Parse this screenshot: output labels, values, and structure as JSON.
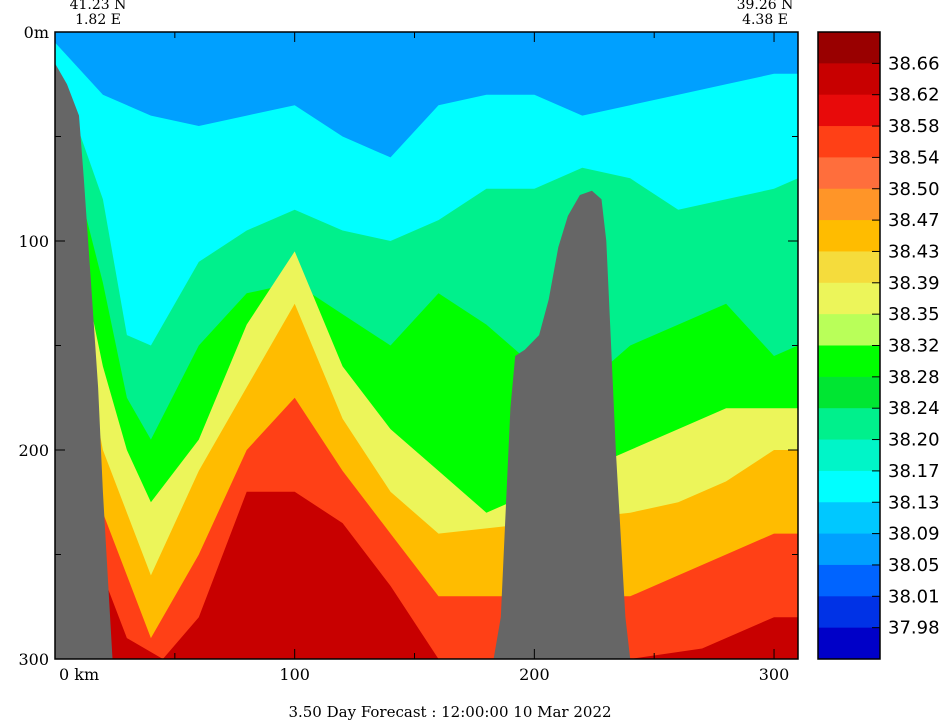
{
  "chart_data": {
    "type": "heatmap",
    "title": "3.50 Day Forecast : 12:00:00  10 Mar 2022",
    "corners": {
      "left": {
        "lat": "41.23 N",
        "lon": "1.82 E"
      },
      "right": {
        "lat": "39.26 N",
        "lon": "4.38 E"
      }
    },
    "xlabel": "km",
    "xlim": [
      0,
      310
    ],
    "x_ticks": [
      "0",
      "100",
      "200",
      "300"
    ],
    "ylabel": "m",
    "ylim": [
      0,
      300
    ],
    "y_ticks": [
      "0",
      "100",
      "200",
      "300"
    ],
    "y_tick_suffix": "m",
    "y_inverted": true,
    "x_tick_suffix": " km",
    "colorbar": {
      "labels": [
        "38.66",
        "38.62",
        "38.58",
        "38.54",
        "38.50",
        "38.47",
        "38.43",
        "38.39",
        "38.35",
        "38.32",
        "38.28",
        "38.24",
        "38.20",
        "38.17",
        "38.13",
        "38.09",
        "38.05",
        "38.01",
        "37.98"
      ],
      "colors": [
        "#990000",
        "#c80000",
        "#e80a0a",
        "#ff4016",
        "#ff6e3c",
        "#ff9528",
        "#ffbc00",
        "#f5dc3c",
        "#ecf55a",
        "#b9ff59",
        "#00ff00",
        "#00e632",
        "#00f08c",
        "#00f5c8",
        "#00ffff",
        "#00c8ff",
        "#00a0ff",
        "#0064ff",
        "#0032e6",
        "#0000c8"
      ]
    },
    "land_color": "#666666",
    "bathymetry_km_m": [
      [
        0,
        15
      ],
      [
        5,
        25
      ],
      [
        10,
        40
      ],
      [
        12,
        70
      ],
      [
        15,
        120
      ],
      [
        18,
        170
      ],
      [
        20,
        220
      ],
      [
        22,
        260
      ],
      [
        24,
        300
      ]
    ],
    "seamount_km_m": [
      [
        183,
        300
      ],
      [
        186,
        280
      ],
      [
        188,
        230
      ],
      [
        190,
        180
      ],
      [
        192,
        155
      ],
      [
        196,
        152
      ],
      [
        202,
        145
      ],
      [
        206,
        128
      ],
      [
        210,
        103
      ],
      [
        214,
        88
      ],
      [
        219,
        78
      ],
      [
        224,
        76
      ],
      [
        228,
        80
      ],
      [
        230,
        100
      ],
      [
        232,
        150
      ],
      [
        234,
        200
      ],
      [
        236,
        240
      ],
      [
        238,
        280
      ],
      [
        240,
        300
      ]
    ],
    "isohalines_m": [
      {
        "value": "38.13",
        "depths": [
          [
            0,
            5
          ],
          [
            20,
            30
          ],
          [
            40,
            40
          ],
          [
            60,
            45
          ],
          [
            80,
            40
          ],
          [
            100,
            35
          ],
          [
            120,
            50
          ],
          [
            140,
            60
          ],
          [
            160,
            35
          ],
          [
            180,
            30
          ],
          [
            200,
            30
          ],
          [
            220,
            40
          ],
          [
            240,
            35
          ],
          [
            260,
            30
          ],
          [
            280,
            25
          ],
          [
            300,
            20
          ],
          [
            310,
            20
          ]
        ]
      },
      {
        "value": "38.20",
        "depths": [
          [
            0,
            15
          ],
          [
            20,
            80
          ],
          [
            30,
            145
          ],
          [
            40,
            150
          ],
          [
            60,
            110
          ],
          [
            80,
            95
          ],
          [
            100,
            85
          ],
          [
            120,
            95
          ],
          [
            140,
            100
          ],
          [
            160,
            90
          ],
          [
            180,
            75
          ],
          [
            200,
            75
          ],
          [
            220,
            65
          ],
          [
            240,
            70
          ],
          [
            260,
            85
          ],
          [
            280,
            80
          ],
          [
            300,
            75
          ],
          [
            310,
            70
          ]
        ]
      },
      {
        "value": "38.28",
        "depths": [
          [
            0,
            30
          ],
          [
            20,
            120
          ],
          [
            30,
            175
          ],
          [
            40,
            195
          ],
          [
            60,
            150
          ],
          [
            80,
            125
          ],
          [
            100,
            120
          ],
          [
            120,
            135
          ],
          [
            140,
            150
          ],
          [
            160,
            125
          ],
          [
            180,
            140
          ],
          [
            200,
            160
          ],
          [
            220,
            170
          ],
          [
            240,
            150
          ],
          [
            260,
            140
          ],
          [
            280,
            130
          ],
          [
            300,
            155
          ],
          [
            310,
            150
          ]
        ]
      },
      {
        "value": "38.35",
        "depths": [
          [
            0,
            50
          ],
          [
            20,
            160
          ],
          [
            30,
            200
          ],
          [
            40,
            225
          ],
          [
            60,
            195
          ],
          [
            80,
            140
          ],
          [
            100,
            105
          ],
          [
            120,
            160
          ],
          [
            140,
            190
          ],
          [
            160,
            210
          ],
          [
            180,
            230
          ],
          [
            240,
            200
          ],
          [
            260,
            190
          ],
          [
            280,
            180
          ],
          [
            300,
            180
          ],
          [
            310,
            180
          ]
        ]
      },
      {
        "value": "38.43",
        "depths": [
          [
            0,
            80
          ],
          [
            20,
            200
          ],
          [
            30,
            230
          ],
          [
            40,
            260
          ],
          [
            60,
            210
          ],
          [
            80,
            170
          ],
          [
            100,
            130
          ],
          [
            120,
            185
          ],
          [
            140,
            220
          ],
          [
            160,
            240
          ],
          [
            240,
            230
          ],
          [
            260,
            225
          ],
          [
            280,
            215
          ],
          [
            300,
            200
          ],
          [
            310,
            200
          ]
        ]
      },
      {
        "value": "38.54",
        "depths": [
          [
            0,
            120
          ],
          [
            20,
            230
          ],
          [
            30,
            260
          ],
          [
            40,
            290
          ],
          [
            60,
            250
          ],
          [
            80,
            200
          ],
          [
            100,
            175
          ],
          [
            120,
            210
          ],
          [
            140,
            240
          ],
          [
            160,
            270
          ],
          [
            240,
            270
          ],
          [
            260,
            260
          ],
          [
            280,
            250
          ],
          [
            300,
            240
          ],
          [
            310,
            240
          ]
        ]
      },
      {
        "value": "38.62",
        "depths": [
          [
            0,
            180
          ],
          [
            20,
            260
          ],
          [
            30,
            290
          ],
          [
            45,
            300
          ],
          [
            60,
            280
          ],
          [
            80,
            220
          ],
          [
            100,
            220
          ],
          [
            120,
            235
          ],
          [
            140,
            265
          ],
          [
            160,
            300
          ],
          [
            240,
            300
          ],
          [
            270,
            295
          ],
          [
            300,
            280
          ],
          [
            310,
            280
          ]
        ]
      }
    ]
  }
}
